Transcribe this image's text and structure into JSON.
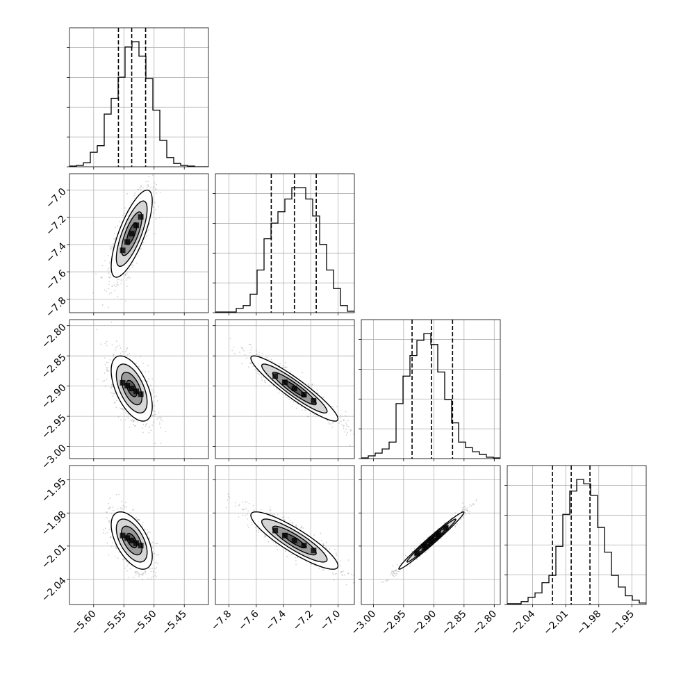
{
  "chart_data": {
    "type": "corner",
    "grid": true,
    "params": [
      {
        "range": [
          -5.64,
          -5.41
        ],
        "ticks": [
          -5.6,
          -5.55,
          -5.5,
          -5.45
        ],
        "tick_labels": [
          "−5.60",
          "−5.55",
          "−5.50",
          "−5.45"
        ],
        "quantiles": [
          -5.559,
          -5.537,
          -5.514
        ],
        "hist": [
          0.5,
          1,
          3,
          11,
          16,
          40,
          52,
          68,
          91,
          95,
          84,
          67,
          43,
          20,
          7,
          2.5,
          1,
          0.5,
          0,
          0
        ],
        "hist_max": 95
      },
      {
        "range": [
          -7.9,
          -6.88
        ],
        "ticks": [
          -7.8,
          -7.6,
          -7.4,
          -7.2,
          -7.0
        ],
        "tick_labels": [
          "−7.8",
          "−7.6",
          "−7.4",
          "−7.2",
          "−7.0"
        ],
        "quantiles": [
          -7.49,
          -7.32,
          -7.16
        ],
        "hist": [
          0.5,
          0.5,
          0.5,
          3,
          5,
          13,
          30,
          52,
          63,
          71,
          80,
          88,
          88,
          80,
          68,
          48,
          30,
          17,
          5,
          1
        ],
        "hist_max": 88
      },
      {
        "range": [
          -3.02,
          -2.79
        ],
        "ticks": [
          -3.0,
          -2.95,
          -2.9,
          -2.85,
          -2.8
        ],
        "tick_labels": [
          "−3.00",
          "−2.95",
          "−2.90",
          "−2.85",
          "−2.80"
        ],
        "quantiles": [
          -2.936,
          -2.904,
          -2.869
        ],
        "hist": [
          0.5,
          2,
          4,
          7,
          12,
          40,
          60,
          75,
          86,
          91,
          83,
          63,
          43,
          26,
          12,
          8,
          5,
          3,
          1,
          0.5
        ],
        "hist_max": 91
      },
      {
        "range": [
          -2.063,
          -1.937
        ],
        "ticks": [
          -2.04,
          -2.01,
          -1.98,
          -1.95
        ],
        "tick_labels": [
          "−2.04",
          "−2.01",
          "−1.98",
          "−1.95"
        ],
        "quantiles": [
          -2.022,
          -2.005,
          -1.988
        ],
        "hist": [
          0.5,
          0.5,
          2,
          5,
          8,
          15,
          20,
          40,
          62,
          78,
          86,
          83,
          75,
          53,
          36,
          20,
          12,
          6,
          3,
          1
        ],
        "hist_max": 86
      }
    ],
    "joint": {
      "means": [
        -5.537,
        -7.32,
        -2.904,
        -2.005
      ],
      "sds": [
        0.017,
        0.16,
        0.027,
        0.013
      ],
      "corr": [
        [
          1.0,
          0.75,
          -0.55,
          -0.55
        ],
        [
          0.75,
          1.0,
          -0.93,
          -0.88
        ],
        [
          -0.55,
          -0.93,
          1.0,
          0.985
        ],
        [
          -0.55,
          -0.88,
          0.985,
          1.0
        ]
      ]
    },
    "contour_levels": [
      0.5,
      1.0,
      1.5,
      2.0
    ],
    "colors": {
      "line": "#000000",
      "grid": "#b0b0b0",
      "points": "#9a9a9a"
    }
  }
}
